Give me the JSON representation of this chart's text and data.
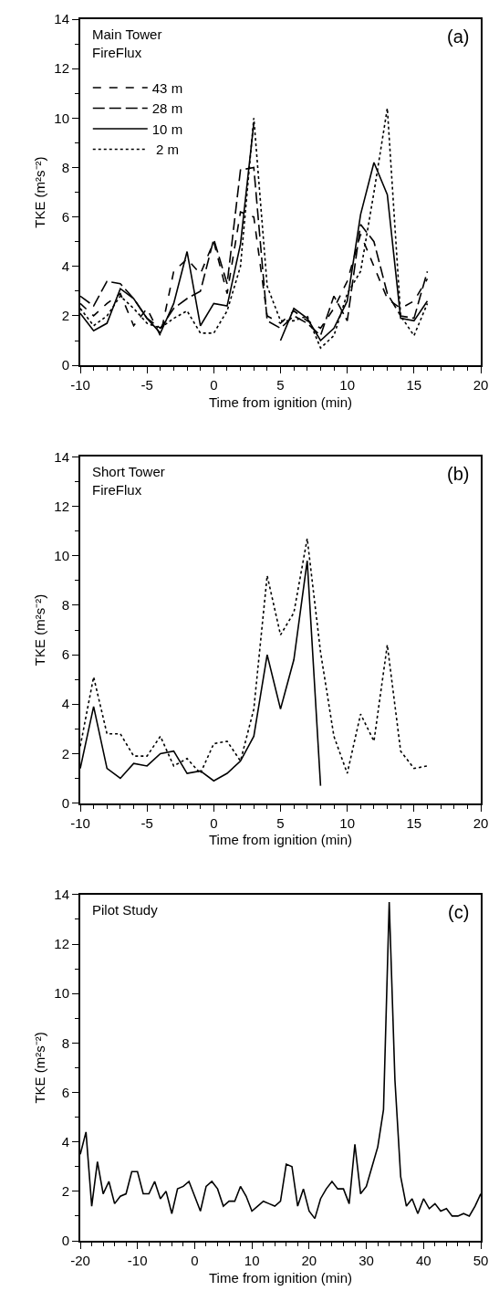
{
  "chart_data": [
    {
      "type": "line",
      "xlabel": "Time from ignition (min)",
      "ylabel": "TKE (m²s⁻²)",
      "annotations": [
        "Main Tower\nFireFlux",
        "(a)"
      ],
      "legend": "top left",
      "x": [
        -10,
        -9,
        -8,
        -7,
        -6,
        -5,
        -4,
        -3,
        -2,
        -1,
        0,
        1,
        2,
        3,
        4,
        5,
        6,
        7,
        8,
        9,
        10,
        11,
        12,
        13,
        14,
        15,
        16
      ],
      "xlim": [
        -10,
        20
      ],
      "xticks": [
        -10,
        {
          "value": -9,
          "label": null
        },
        {
          "value": -8,
          "label": null
        },
        {
          "value": -7,
          "label": null
        },
        {
          "value": -6,
          "label": null
        },
        -5,
        {
          "value": -4,
          "label": null
        },
        {
          "value": -3,
          "label": null
        },
        {
          "value": -2,
          "label": null
        },
        {
          "value": -1,
          "label": null
        },
        0,
        {
          "value": 1,
          "label": null
        },
        {
          "value": 2,
          "label": null
        },
        {
          "value": 3,
          "label": null
        },
        {
          "value": 4,
          "label": null
        },
        5,
        {
          "value": 6,
          "label": null
        },
        {
          "value": 7,
          "label": null
        },
        {
          "value": 8,
          "label": null
        },
        {
          "value": 9,
          "label": null
        },
        10,
        {
          "value": 11,
          "label": null
        },
        {
          "value": 12,
          "label": null
        },
        {
          "value": 13,
          "label": null
        },
        {
          "value": 14,
          "label": null
        },
        15,
        {
          "value": 16,
          "label": null
        },
        {
          "value": 17,
          "label": null
        },
        {
          "value": 18,
          "label": null
        },
        {
          "value": 19,
          "label": null
        },
        20
      ],
      "ylim": [
        0,
        14
      ],
      "yticks": [
        0,
        {
          "value": 1,
          "label": null
        },
        2,
        {
          "value": 3,
          "label": null
        },
        4,
        {
          "value": 5,
          "label": null
        },
        6,
        {
          "value": 7,
          "label": null
        },
        8,
        {
          "value": 9,
          "label": null
        },
        10,
        {
          "value": 11,
          "label": null
        },
        12,
        {
          "value": 13,
          "label": null
        },
        14
      ],
      "series": [
        {
          "name": "43 m",
          "color": "#000000",
          "line_style": "dashed",
          "values": [
            2.5,
            2.0,
            2.5,
            2.9,
            1.6,
            2.3,
            1.2,
            3.8,
            4.3,
            3.7,
            5.0,
            2.9,
            6.2,
            6.0,
            2.0,
            1.7,
            2.2,
            1.8,
            1.5,
            2.3,
            3.4,
            5.3,
            4.0,
            2.7,
            2.3,
            2.6,
            3.5
          ]
        },
        {
          "name": "28 m",
          "color": "#000000",
          "line_style": "long dashed",
          "values": [
            2.8,
            2.4,
            3.4,
            3.3,
            2.7,
            1.9,
            1.5,
            2.3,
            2.7,
            3.0,
            5.1,
            3.3,
            7.9,
            8.0,
            1.8,
            1.5,
            2.0,
            1.7,
            1.2,
            2.8,
            1.8,
            5.7,
            5.0,
            2.9,
            2.0,
            1.9,
            3.8
          ]
        },
        {
          "name": "10 m",
          "color": "#000000",
          "line_style": "solid",
          "values": [
            2.1,
            1.4,
            1.7,
            3.1,
            2.7,
            1.9,
            1.3,
            2.5,
            4.6,
            1.6,
            2.5,
            2.4,
            4.9,
            9.8,
            null,
            1.0,
            2.3,
            1.9,
            1.0,
            1.5,
            2.6,
            6.1,
            8.2,
            6.9,
            1.9,
            1.8,
            2.6
          ]
        },
        {
          "name": " 2 m",
          "color": "#000000",
          "line_style": "dotted",
          "values": [
            2.3,
            1.6,
            2.0,
            2.8,
            2.3,
            1.7,
            1.5,
            1.9,
            2.2,
            1.3,
            1.3,
            2.2,
            4.0,
            10.0,
            3.2,
            1.8,
            1.8,
            2.0,
            0.7,
            1.2,
            2.9,
            3.8,
            7.0,
            10.4,
            2.0,
            1.2,
            2.5
          ]
        }
      ]
    },
    {
      "type": "line",
      "xlabel": "Time from ignition (min)",
      "ylabel": "TKE (m²s⁻²)",
      "annotations": [
        "Short Tower\nFireFlux",
        "(b)"
      ],
      "xlim": [
        -10,
        20
      ],
      "xticks": [
        -10,
        {
          "value": -9,
          "label": null
        },
        {
          "value": -8,
          "label": null
        },
        {
          "value": -7,
          "label": null
        },
        {
          "value": -6,
          "label": null
        },
        -5,
        {
          "value": -4,
          "label": null
        },
        {
          "value": -3,
          "label": null
        },
        {
          "value": -2,
          "label": null
        },
        {
          "value": -1,
          "label": null
        },
        0,
        {
          "value": 1,
          "label": null
        },
        {
          "value": 2,
          "label": null
        },
        {
          "value": 3,
          "label": null
        },
        {
          "value": 4,
          "label": null
        },
        5,
        {
          "value": 6,
          "label": null
        },
        {
          "value": 7,
          "label": null
        },
        {
          "value": 8,
          "label": null
        },
        {
          "value": 9,
          "label": null
        },
        10,
        {
          "value": 11,
          "label": null
        },
        {
          "value": 12,
          "label": null
        },
        {
          "value": 13,
          "label": null
        },
        {
          "value": 14,
          "label": null
        },
        15,
        {
          "value": 16,
          "label": null
        },
        {
          "value": 17,
          "label": null
        },
        {
          "value": 18,
          "label": null
        },
        {
          "value": 19,
          "label": null
        },
        20
      ],
      "ylim": [
        0,
        14
      ],
      "yticks": [
        0,
        {
          "value": 1,
          "label": null
        },
        2,
        {
          "value": 3,
          "label": null
        },
        4,
        {
          "value": 5,
          "label": null
        },
        6,
        {
          "value": 7,
          "label": null
        },
        8,
        {
          "value": 9,
          "label": null
        },
        10,
        {
          "value": 11,
          "label": null
        },
        12,
        {
          "value": 13,
          "label": null
        },
        14
      ],
      "series": [
        {
          "color": "#000000",
          "line_style": "solid",
          "x": [
            -10,
            -9,
            -8,
            -7,
            -6,
            -5,
            -4,
            -3,
            -2,
            -1,
            0,
            1,
            2,
            3,
            4,
            5,
            6,
            7,
            8
          ],
          "values": [
            1.4,
            3.9,
            1.4,
            1.0,
            1.6,
            1.5,
            2.0,
            2.1,
            1.2,
            1.3,
            0.9,
            1.2,
            1.7,
            2.7,
            6.0,
            3.8,
            5.8,
            9.8,
            0.7
          ]
        },
        {
          "color": "#000000",
          "line_style": "dotted",
          "x": [
            -10,
            -9,
            -8,
            -7,
            -6,
            -5,
            -4,
            -3,
            -2,
            -1,
            0,
            1,
            2,
            3,
            4,
            5,
            6,
            7,
            8,
            9,
            10,
            11,
            12,
            13,
            14,
            15,
            16
          ],
          "values": [
            2.3,
            5.1,
            2.8,
            2.8,
            1.9,
            1.9,
            2.7,
            1.5,
            1.8,
            1.2,
            2.4,
            2.5,
            1.7,
            3.8,
            9.2,
            6.8,
            7.7,
            10.7,
            6.1,
            2.7,
            1.2,
            3.6,
            2.5,
            6.4,
            2.1,
            1.4,
            1.5
          ]
        }
      ]
    },
    {
      "type": "line",
      "xlabel": "Time from ignition (min)",
      "ylabel": "TKE (m²s⁻²)",
      "annotations": [
        "Pilot Study",
        "(c)"
      ],
      "xlim": [
        -20,
        50
      ],
      "xticks": [
        -20,
        {
          "value": -18,
          "label": null
        },
        {
          "value": -16,
          "label": null
        },
        {
          "value": -14,
          "label": null
        },
        {
          "value": -12,
          "label": null
        },
        -10,
        {
          "value": -8,
          "label": null
        },
        {
          "value": -6,
          "label": null
        },
        {
          "value": -4,
          "label": null
        },
        {
          "value": -2,
          "label": null
        },
        0,
        {
          "value": 2,
          "label": null
        },
        {
          "value": 4,
          "label": null
        },
        {
          "value": 6,
          "label": null
        },
        {
          "value": 8,
          "label": null
        },
        10,
        {
          "value": 12,
          "label": null
        },
        {
          "value": 14,
          "label": null
        },
        {
          "value": 16,
          "label": null
        },
        {
          "value": 18,
          "label": null
        },
        20,
        {
          "value": 22,
          "label": null
        },
        {
          "value": 24,
          "label": null
        },
        {
          "value": 26,
          "label": null
        },
        {
          "value": 28,
          "label": null
        },
        30,
        {
          "value": 32,
          "label": null
        },
        {
          "value": 34,
          "label": null
        },
        {
          "value": 36,
          "label": null
        },
        {
          "value": 38,
          "label": null
        },
        40,
        {
          "value": 42,
          "label": null
        },
        {
          "value": 44,
          "label": null
        },
        {
          "value": 46,
          "label": null
        },
        {
          "value": 48,
          "label": null
        },
        50
      ],
      "ylim": [
        0,
        14
      ],
      "yticks": [
        0,
        {
          "value": 1,
          "label": null
        },
        2,
        {
          "value": 3,
          "label": null
        },
        4,
        {
          "value": 5,
          "label": null
        },
        6,
        {
          "value": 7,
          "label": null
        },
        8,
        {
          "value": 9,
          "label": null
        },
        10,
        {
          "value": 11,
          "label": null
        },
        12,
        {
          "value": 13,
          "label": null
        },
        14
      ],
      "x": [
        -20,
        -19,
        -18,
        -17,
        -16,
        -15,
        -14,
        -13,
        -12,
        -11,
        -10,
        -9,
        -8,
        -7,
        -6,
        -5,
        -4,
        -3,
        -2,
        -1,
        0,
        1,
        2,
        3,
        4,
        5,
        6,
        7,
        8,
        9,
        10,
        11,
        12,
        13,
        14,
        15,
        16,
        17,
        18,
        19,
        20,
        21,
        22,
        23,
        24,
        25,
        26,
        27,
        28,
        29,
        30,
        31,
        32,
        33,
        34,
        35,
        36,
        37,
        38,
        39,
        40,
        41,
        42,
        43,
        44,
        45,
        46,
        47,
        48,
        49,
        50
      ],
      "series": [
        {
          "color": "#000000",
          "line_style": "solid",
          "values": [
            3.5,
            4.4,
            1.4,
            3.2,
            1.9,
            2.4,
            1.5,
            1.8,
            1.9,
            2.8,
            2.8,
            1.9,
            1.9,
            2.4,
            1.7,
            2.0,
            1.1,
            2.1,
            2.2,
            2.4,
            1.8,
            1.2,
            2.2,
            2.4,
            2.1,
            1.4,
            1.6,
            1.6,
            2.2,
            1.8,
            1.2,
            1.4,
            1.6,
            1.5,
            1.4,
            1.6,
            3.1,
            3.0,
            1.4,
            2.1,
            1.2,
            0.9,
            1.7,
            2.1,
            2.4,
            2.1,
            2.1,
            1.5,
            3.9,
            1.9,
            2.2,
            3.0,
            3.8,
            5.3,
            13.7,
            6.5,
            2.6,
            1.4,
            1.7,
            1.1,
            1.7,
            1.3,
            1.5,
            1.2,
            1.3,
            1.0,
            1.0,
            1.1,
            1.0,
            1.4,
            1.9
          ]
        }
      ]
    }
  ]
}
